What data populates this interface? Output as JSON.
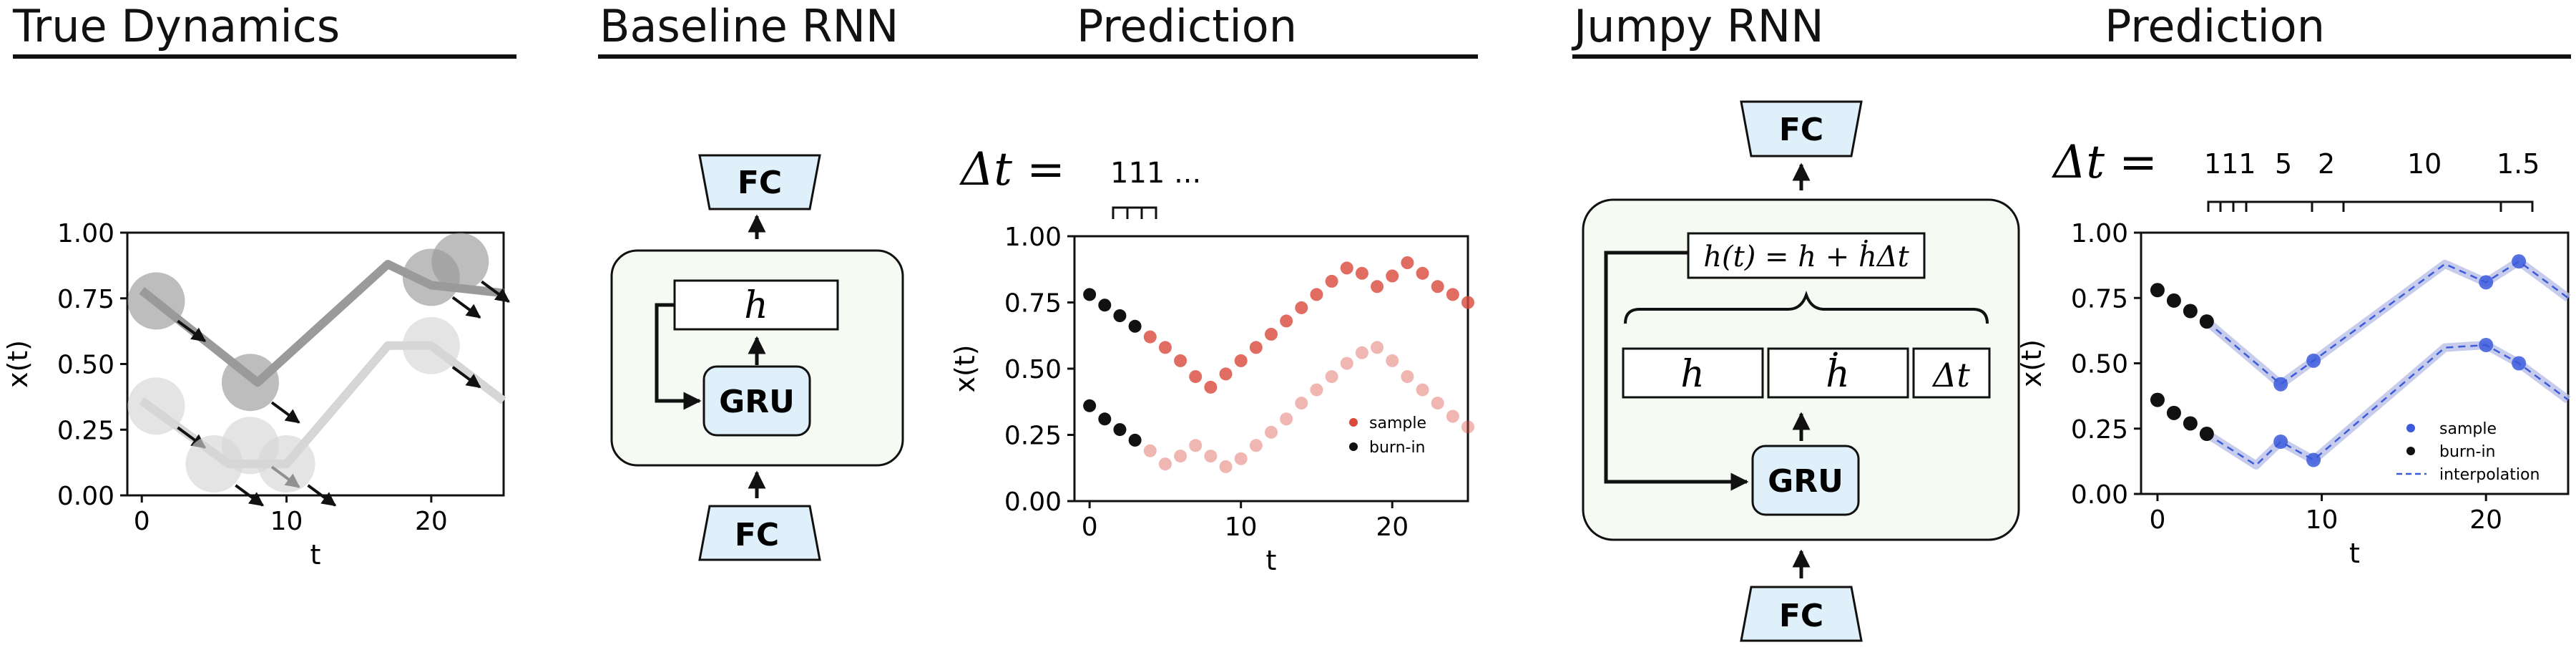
{
  "headers": {
    "true_dynamics": "True Dynamics",
    "baseline_rnn": "Baseline RNN",
    "prediction_1": "Prediction",
    "jumpy_rnn": "Jumpy RNN",
    "prediction_2": "Prediction"
  },
  "baseline_diagram": {
    "fc_top": "FC",
    "fc_bottom": "FC",
    "gru": "GRU",
    "hidden": "h",
    "delta_t_label": "Δt =",
    "delta_t_values": "111 ..."
  },
  "jumpy_diagram": {
    "fc_top": "FC",
    "fc_bottom": "FC",
    "gru": "GRU",
    "update_eq": "h(t) = h + ḣΔt",
    "cells": [
      "h",
      "ḣ",
      "Δt"
    ],
    "delta_t_label": "Δt =",
    "delta_t_values": [
      "111",
      "5",
      "2",
      "10",
      "1.5"
    ]
  },
  "colors": {
    "box_fill": "#f5fbf3",
    "fc_fill": "#dff0fb",
    "gru_fill": "#dff0fb",
    "red_series": "#d9483b",
    "blue_series": "#3b5bdb",
    "gray_dark": "#9a9a9a",
    "gray_light": "#d6d6d6"
  },
  "chart_data": [
    {
      "type": "line",
      "title": "True Dynamics",
      "xlabel": "t",
      "ylabel": "x(t)",
      "xlim": [
        -1,
        25
      ],
      "ylim": [
        0,
        1
      ],
      "xticks": [
        "0",
        "10",
        "20"
      ],
      "yticks": [
        "0.00",
        "0.25",
        "0.50",
        "0.75",
        "1.00"
      ],
      "series": [
        {
          "x": [
            0,
            8,
            17,
            20,
            25
          ],
          "values": [
            0.78,
            0.43,
            0.88,
            0.8,
            0.77
          ]
        },
        {
          "x": [
            0,
            6,
            10,
            17,
            20,
            25
          ],
          "values": [
            0.36,
            0.12,
            0.12,
            0.57,
            0.57,
            0.36
          ]
        }
      ],
      "markers": [
        {
          "x": 1,
          "y": 0.74,
          "series": 0
        },
        {
          "x": 7.5,
          "y": 0.43,
          "series": 0
        },
        {
          "x": 20,
          "y": 0.83,
          "series": 0
        },
        {
          "x": 22,
          "y": 0.89,
          "series": 0
        },
        {
          "x": 1,
          "y": 0.34,
          "series": 1
        },
        {
          "x": 5,
          "y": 0.12,
          "series": 1
        },
        {
          "x": 7.5,
          "y": 0.19,
          "series": 1
        },
        {
          "x": 10,
          "y": 0.12,
          "series": 1
        },
        {
          "x": 20,
          "y": 0.57,
          "series": 1
        }
      ]
    },
    {
      "type": "scatter",
      "xlabel": "t",
      "ylabel": "x(t)",
      "xlim": [
        -1,
        25
      ],
      "ylim": [
        0,
        1
      ],
      "xticks": [
        "0",
        "10",
        "20"
      ],
      "yticks": [
        "0.00",
        "0.25",
        "0.50",
        "0.75",
        "1.00"
      ],
      "legend": [
        "sample",
        "burn-in"
      ],
      "legend_position": "right",
      "series": [
        {
          "name": "burn-in",
          "x": [
            0,
            1,
            2,
            3
          ],
          "values": [
            0.78,
            0.74,
            0.7,
            0.66
          ]
        },
        {
          "name": "sample",
          "x": [
            4,
            5,
            6,
            7,
            8,
            9,
            10,
            11,
            12,
            13,
            14,
            15,
            16,
            17,
            18,
            19,
            20,
            21,
            22,
            23,
            24,
            25
          ],
          "values": [
            0.62,
            0.58,
            0.53,
            0.47,
            0.43,
            0.48,
            0.53,
            0.58,
            0.63,
            0.68,
            0.73,
            0.78,
            0.83,
            0.88,
            0.86,
            0.81,
            0.85,
            0.9,
            0.86,
            0.81,
            0.78,
            0.75
          ]
        },
        {
          "name": "burn-in",
          "x": [
            0,
            1,
            2,
            3
          ],
          "values": [
            0.36,
            0.31,
            0.27,
            0.23
          ]
        },
        {
          "name": "sample",
          "x": [
            4,
            5,
            6,
            7,
            8,
            9,
            10,
            11,
            12,
            13,
            14,
            15,
            16,
            17,
            18,
            19,
            20,
            21,
            22,
            23,
            24,
            25
          ],
          "values": [
            0.19,
            0.14,
            0.17,
            0.21,
            0.17,
            0.13,
            0.16,
            0.21,
            0.26,
            0.31,
            0.37,
            0.42,
            0.47,
            0.52,
            0.56,
            0.58,
            0.53,
            0.47,
            0.42,
            0.37,
            0.32,
            0.28
          ]
        }
      ]
    },
    {
      "type": "scatter",
      "xlabel": "t",
      "ylabel": "x(t)",
      "xlim": [
        -1,
        25
      ],
      "ylim": [
        0,
        1
      ],
      "xticks": [
        "0",
        "10",
        "20"
      ],
      "yticks": [
        "0.00",
        "0.25",
        "0.50",
        "0.75",
        "1.00"
      ],
      "legend": [
        "sample",
        "burn-in",
        "interpolation"
      ],
      "legend_position": "right",
      "series": [
        {
          "name": "burn-in",
          "x": [
            0,
            1,
            2,
            3
          ],
          "values": [
            0.78,
            0.74,
            0.7,
            0.66
          ]
        },
        {
          "name": "sample",
          "x": [
            7.5,
            9.5,
            20,
            22
          ],
          "values": [
            0.42,
            0.51,
            0.81,
            0.89
          ]
        },
        {
          "name": "interpolation",
          "x": [
            3,
            7.5,
            9.5,
            17.5,
            20,
            22,
            25
          ],
          "values": [
            0.66,
            0.42,
            0.51,
            0.88,
            0.81,
            0.89,
            0.75
          ]
        },
        {
          "name": "burn-in",
          "x": [
            0,
            1,
            2,
            3
          ],
          "values": [
            0.36,
            0.31,
            0.27,
            0.23
          ]
        },
        {
          "name": "sample",
          "x": [
            7.5,
            9.5,
            20,
            22
          ],
          "values": [
            0.2,
            0.13,
            0.57,
            0.5
          ]
        },
        {
          "name": "interpolation",
          "x": [
            3,
            6,
            7.5,
            9.5,
            17.5,
            20,
            22,
            25
          ],
          "values": [
            0.23,
            0.11,
            0.2,
            0.13,
            0.56,
            0.57,
            0.5,
            0.36
          ]
        }
      ]
    }
  ]
}
